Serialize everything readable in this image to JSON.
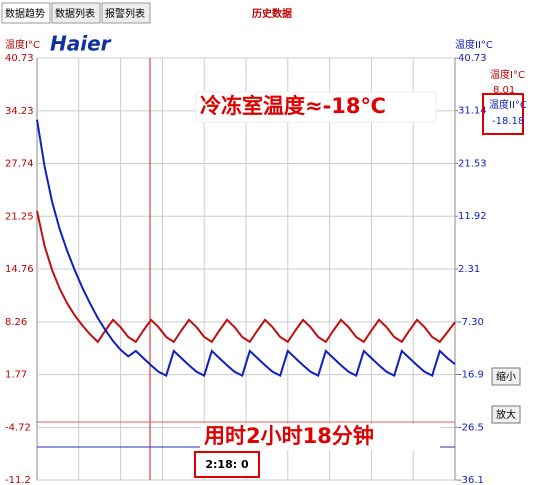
{
  "tabs": [
    "数据趋势",
    "数据列表",
    "报警列表"
  ],
  "window_title": "历史数据",
  "logo": "Haier",
  "buttons": [
    "缩小",
    "放大"
  ],
  "chart_data": {
    "type": "line",
    "annotations": [
      "冷冻室温度≈-18℃",
      "用时2小时18分钟",
      "2:18: 0"
    ],
    "current_values": [
      8.01,
      -18.18
    ],
    "ylim": [
      -11.2,
      40.73
    ],
    "yticks": [
      40.73,
      34.23,
      27.74,
      21.25,
      14.76,
      8.26,
      1.77,
      -4.72,
      -11.2
    ],
    "y2lim": [
      -36.1,
      40.73
    ],
    "y2ticks": [
      40.73,
      31.14,
      21.53,
      11.92,
      2.31,
      {
        "value": -7.3,
        "label": "-7.30"
      },
      -16.9,
      -26.5,
      -36.1
    ],
    "grid": true,
    "series": [
      {
        "name": "温度I°C",
        "color": "#c01010",
        "values": [
          21.9,
          17.6,
          14.6,
          12.3,
          10.5,
          9.0,
          7.8,
          6.7,
          5.8,
          7.2,
          8.5,
          7.6,
          6.4,
          5.8,
          7.2,
          8.5,
          7.6,
          6.4,
          5.8,
          7.2,
          8.5,
          7.6,
          6.4,
          5.8,
          7.2,
          8.5,
          7.6,
          6.4,
          5.8,
          7.2,
          8.5,
          7.6,
          6.4,
          5.8,
          7.2,
          8.5,
          7.6,
          6.4,
          5.8,
          7.2,
          8.5,
          7.6,
          6.4,
          5.8,
          7.2,
          8.5,
          7.6,
          6.4,
          5.8,
          7.2,
          8.5,
          7.6,
          6.4,
          5.8,
          7.0,
          8.2
        ]
      },
      {
        "name": "温度II°C",
        "color": "#1020c0",
        "axis": "y2",
        "values": [
          29.5,
          21.0,
          14.5,
          9.5,
          5.5,
          2.0,
          -1.2,
          -4.0,
          -6.6,
          -8.8,
          -10.8,
          -12.4,
          -13.6,
          -12.6,
          -13.9,
          -15.2,
          -16.4,
          -17.1,
          -12.6,
          -13.9,
          -15.2,
          -16.4,
          -17.1,
          -12.6,
          -13.9,
          -15.2,
          -16.4,
          -17.1,
          -12.6,
          -13.9,
          -15.2,
          -16.4,
          -17.1,
          -12.6,
          -13.9,
          -15.2,
          -16.4,
          -17.1,
          -12.6,
          -13.9,
          -15.2,
          -16.4,
          -17.1,
          -12.6,
          -13.9,
          -15.2,
          -16.4,
          -17.1,
          -12.6,
          -13.9,
          -15.2,
          -16.4,
          -17.1,
          -12.6,
          -13.9,
          -15.0
        ]
      }
    ]
  }
}
